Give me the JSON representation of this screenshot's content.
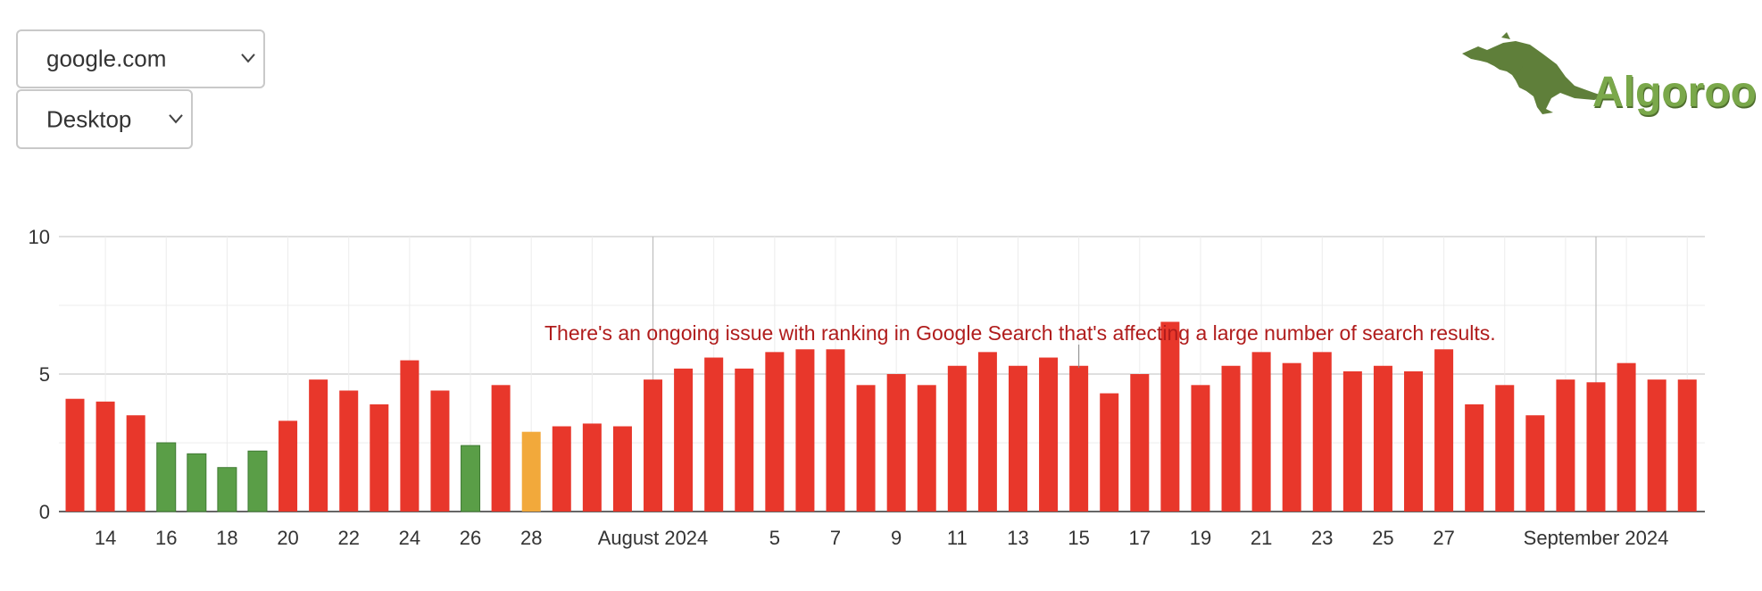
{
  "controls": {
    "site_select": {
      "selected": "google.com"
    },
    "device_select": {
      "selected": "Desktop"
    }
  },
  "logo": {
    "text": "Algoroo",
    "icon": "kangaroo-icon",
    "color": "#5a8a3a"
  },
  "colors": {
    "red": "#e8372b",
    "green": "#5a9e47",
    "orange": "#f2a93b",
    "annotation": "#b01c1c"
  },
  "chart_data": {
    "type": "bar",
    "ylim": [
      0,
      10
    ],
    "yticks": [
      0,
      5,
      10
    ],
    "x_tick_labels": [
      "14",
      "16",
      "18",
      "20",
      "22",
      "24",
      "26",
      "28",
      "August 2024",
      "5",
      "7",
      "9",
      "11",
      "13",
      "15",
      "17",
      "19",
      "21",
      "23",
      "25",
      "27",
      "September 2024"
    ],
    "annotation": "There's an ongoing issue with ranking in Google Search that's affecting a large number of search results.",
    "bars": [
      {
        "date": "2024-07-13",
        "value": 4.1,
        "status": "red"
      },
      {
        "date": "2024-07-14",
        "value": 4.0,
        "status": "red"
      },
      {
        "date": "2024-07-15",
        "value": 3.5,
        "status": "red"
      },
      {
        "date": "2024-07-16",
        "value": 2.5,
        "status": "green"
      },
      {
        "date": "2024-07-17",
        "value": 2.1,
        "status": "green"
      },
      {
        "date": "2024-07-18",
        "value": 1.6,
        "status": "green"
      },
      {
        "date": "2024-07-19",
        "value": 2.2,
        "status": "green"
      },
      {
        "date": "2024-07-20",
        "value": 3.3,
        "status": "red"
      },
      {
        "date": "2024-07-21",
        "value": 4.8,
        "status": "red"
      },
      {
        "date": "2024-07-22",
        "value": 4.4,
        "status": "red"
      },
      {
        "date": "2024-07-23",
        "value": 3.9,
        "status": "red"
      },
      {
        "date": "2024-07-24",
        "value": 5.5,
        "status": "red"
      },
      {
        "date": "2024-07-25",
        "value": 4.4,
        "status": "red"
      },
      {
        "date": "2024-07-26",
        "value": 2.4,
        "status": "green"
      },
      {
        "date": "2024-07-27",
        "value": 4.6,
        "status": "red"
      },
      {
        "date": "2024-07-28",
        "value": 2.9,
        "status": "orange"
      },
      {
        "date": "2024-07-29",
        "value": 3.1,
        "status": "red"
      },
      {
        "date": "2024-07-30",
        "value": 3.2,
        "status": "red"
      },
      {
        "date": "2024-07-31",
        "value": 3.1,
        "status": "red"
      },
      {
        "date": "2024-08-01",
        "value": 4.8,
        "status": "red"
      },
      {
        "date": "2024-08-02",
        "value": 5.2,
        "status": "red"
      },
      {
        "date": "2024-08-03",
        "value": 5.6,
        "status": "red"
      },
      {
        "date": "2024-08-04",
        "value": 5.2,
        "status": "red"
      },
      {
        "date": "2024-08-05",
        "value": 5.8,
        "status": "red"
      },
      {
        "date": "2024-08-06",
        "value": 5.9,
        "status": "red"
      },
      {
        "date": "2024-08-07",
        "value": 5.9,
        "status": "red"
      },
      {
        "date": "2024-08-08",
        "value": 4.6,
        "status": "red"
      },
      {
        "date": "2024-08-09",
        "value": 5.0,
        "status": "red"
      },
      {
        "date": "2024-08-10",
        "value": 4.6,
        "status": "red"
      },
      {
        "date": "2024-08-11",
        "value": 5.3,
        "status": "red"
      },
      {
        "date": "2024-08-12",
        "value": 5.8,
        "status": "red"
      },
      {
        "date": "2024-08-13",
        "value": 5.3,
        "status": "red"
      },
      {
        "date": "2024-08-14",
        "value": 5.6,
        "status": "red"
      },
      {
        "date": "2024-08-15",
        "value": 5.3,
        "status": "red"
      },
      {
        "date": "2024-08-16",
        "value": 4.3,
        "status": "red"
      },
      {
        "date": "2024-08-17",
        "value": 5.0,
        "status": "red"
      },
      {
        "date": "2024-08-18",
        "value": 6.9,
        "status": "red"
      },
      {
        "date": "2024-08-19",
        "value": 4.6,
        "status": "red"
      },
      {
        "date": "2024-08-20",
        "value": 5.3,
        "status": "red"
      },
      {
        "date": "2024-08-21",
        "value": 5.8,
        "status": "red"
      },
      {
        "date": "2024-08-22",
        "value": 5.4,
        "status": "red"
      },
      {
        "date": "2024-08-23",
        "value": 5.8,
        "status": "red"
      },
      {
        "date": "2024-08-24",
        "value": 5.1,
        "status": "red"
      },
      {
        "date": "2024-08-25",
        "value": 5.3,
        "status": "red"
      },
      {
        "date": "2024-08-26",
        "value": 5.1,
        "status": "red"
      },
      {
        "date": "2024-08-27",
        "value": 5.9,
        "status": "red"
      },
      {
        "date": "2024-08-28",
        "value": 3.9,
        "status": "red"
      },
      {
        "date": "2024-08-29",
        "value": 4.6,
        "status": "red"
      },
      {
        "date": "2024-08-30",
        "value": 3.5,
        "status": "red"
      },
      {
        "date": "2024-08-31",
        "value": 4.8,
        "status": "red"
      },
      {
        "date": "2024-09-01",
        "value": 4.7,
        "status": "red"
      },
      {
        "date": "2024-09-02",
        "value": 5.4,
        "status": "red"
      },
      {
        "date": "2024-09-03",
        "value": 4.8,
        "status": "red"
      },
      {
        "date": "2024-09-04",
        "value": 4.8,
        "status": "red"
      }
    ]
  }
}
